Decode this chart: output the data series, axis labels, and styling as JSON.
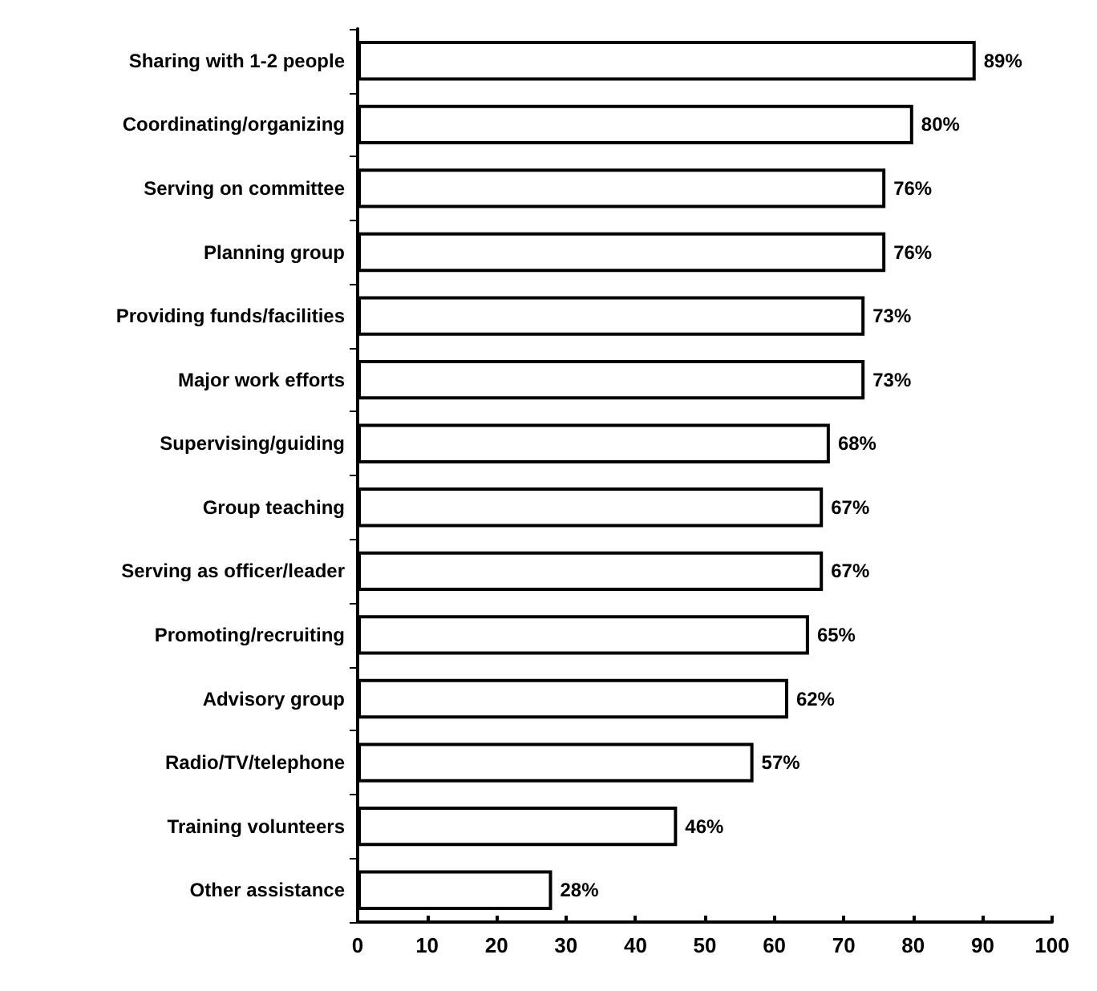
{
  "chart_data": {
    "type": "bar",
    "orientation": "horizontal",
    "categories": [
      "Sharing with 1-2 people",
      "Coordinating/organizing",
      "Serving on committee",
      "Planning group",
      "Providing funds/facilities",
      "Major work efforts",
      "Supervising/guiding",
      "Group teaching",
      "Serving as officer/leader",
      "Promoting/recruiting",
      "Advisory group",
      "Radio/TV/telephone",
      "Training volunteers",
      "Other assistance"
    ],
    "values": [
      89,
      80,
      76,
      76,
      73,
      73,
      68,
      67,
      67,
      65,
      62,
      57,
      46,
      28
    ],
    "value_labels": [
      "89%",
      "80%",
      "76%",
      "76%",
      "73%",
      "73%",
      "68%",
      "67%",
      "67%",
      "65%",
      "62%",
      "57%",
      "46%",
      "28%"
    ],
    "color": "#ffffff",
    "xlim": [
      0,
      100
    ],
    "xticks": [
      0,
      10,
      20,
      30,
      40,
      50,
      60,
      70,
      80,
      90,
      100
    ],
    "grid": false
  }
}
